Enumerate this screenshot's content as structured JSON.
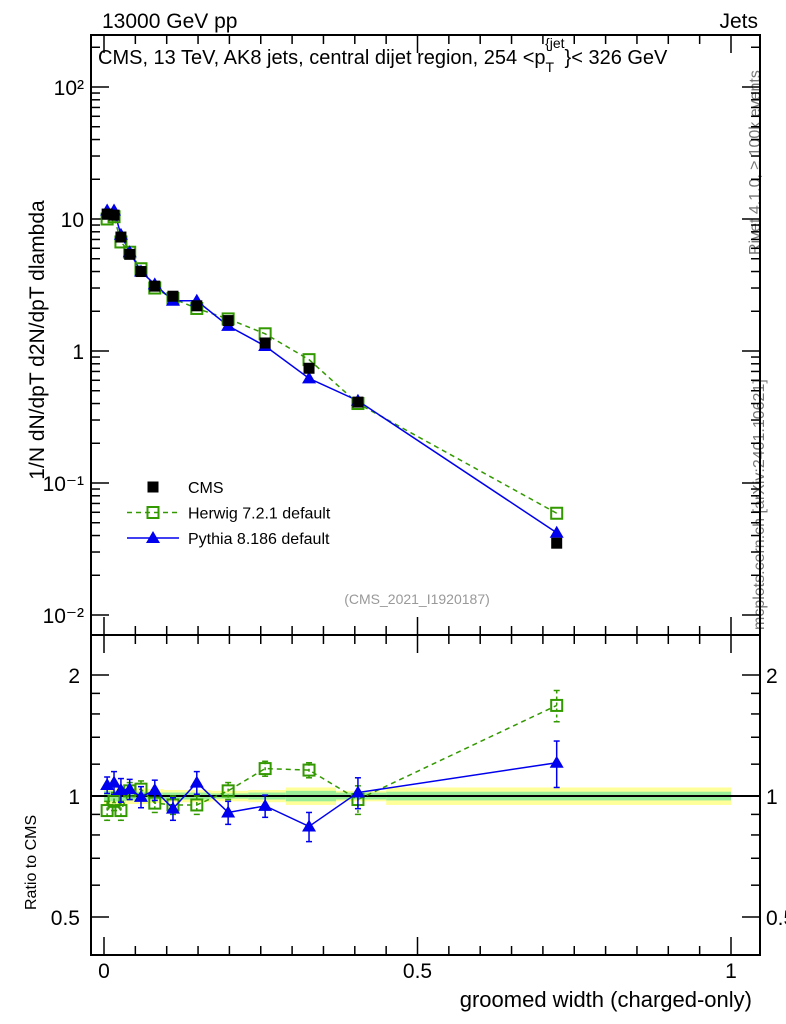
{
  "header": {
    "left": "13000 GeV pp",
    "right": "Jets"
  },
  "side": {
    "rivet": "Rivet 4.1.0, ≥ 100k events",
    "mcplots": "mcplots.cern.ch [arXiv:2401.10621]"
  },
  "chart_data": [
    {
      "type": "line",
      "title": "CMS, 13 TeV, AK8 jets, central dijet region, 254 <p_T^{jet}< 326 GeV",
      "title_main": "CMS, 13 TeV, AK8 jets, central dijet region, 254 <p",
      "title_sub": "T",
      "title_sup": "{jet",
      "title_end": "}< 326 GeV",
      "ylabel": "1/N dN/dpT d2N/dpT dlambda",
      "yscale": "log",
      "ylim": [
        0.008,
        250
      ],
      "xlim": [
        -0.02,
        1.05
      ],
      "ytick_labels": [
        "10⁻²",
        "10⁻¹",
        "1",
        "10",
        "10²"
      ],
      "ytick_values": [
        0.01,
        0.1,
        1,
        10,
        100
      ],
      "watermark": "(CMS_2021_I1920187)",
      "legend_position": "center-left",
      "x": [
        0.005,
        0.016,
        0.027,
        0.041,
        0.059,
        0.081,
        0.11,
        0.148,
        0.198,
        0.257,
        0.327,
        0.405,
        0.722
      ],
      "series": [
        {
          "name": "CMS",
          "color": "#000000",
          "marker": "square-filled",
          "values": [
            10.9,
            10.7,
            7.3,
            5.4,
            4.0,
            3.1,
            2.6,
            2.2,
            1.7,
            1.15,
            0.74,
            0.41,
            0.035
          ]
        },
        {
          "name": "Herwig 7.2.1 default",
          "color": "#339900",
          "marker": "square-open",
          "dashed": true,
          "values": [
            10.0,
            10.4,
            6.7,
            5.6,
            4.2,
            3.0,
            2.5,
            2.1,
            1.75,
            1.35,
            0.86,
            0.4,
            0.059
          ]
        },
        {
          "name": "Pythia 8.186 default",
          "color": "#0000ee",
          "marker": "triangle",
          "values": [
            11.6,
            11.6,
            7.6,
            5.6,
            4.0,
            3.2,
            2.4,
            2.4,
            1.55,
            1.09,
            0.62,
            0.42,
            0.042
          ]
        }
      ]
    },
    {
      "type": "line",
      "ylabel": "Ratio to CMS",
      "xlabel": "groomed width (charged-only)",
      "yscale": "log",
      "ylim": [
        0.4,
        2.3
      ],
      "ytick_labels": [
        "0.5",
        "1",
        "2"
      ],
      "ytick_values": [
        0.5,
        1,
        2
      ],
      "xtick_labels": [
        "0",
        "0.5",
        "1"
      ],
      "xtick_values": [
        0,
        0.5,
        1
      ],
      "bin_edges": [
        0,
        0.01,
        0.02,
        0.035,
        0.05,
        0.07,
        0.095,
        0.13,
        0.17,
        0.23,
        0.29,
        0.37,
        0.45,
        1.0
      ],
      "band_inner": [
        0.03,
        0.03,
        0.03,
        0.025,
        0.025,
        0.02,
        0.02,
        0.02,
        0.015,
        0.02,
        0.03,
        0.02,
        0.025
      ],
      "band_outer": [
        0.05,
        0.05,
        0.05,
        0.045,
        0.045,
        0.04,
        0.035,
        0.035,
        0.03,
        0.035,
        0.05,
        0.03,
        0.05
      ],
      "series": [
        {
          "name": "Herwig 7.2.1 default",
          "color": "#339900",
          "values": [
            0.92,
            0.97,
            0.92,
            1.03,
            1.04,
            0.96,
            0.95,
            0.95,
            1.03,
            1.17,
            1.16,
            0.98,
            1.68
          ],
          "errors": [
            0.05,
            0.05,
            0.05,
            0.05,
            0.05,
            0.05,
            0.05,
            0.05,
            0.05,
            0.05,
            0.05,
            0.08,
            0.15
          ]
        },
        {
          "name": "Pythia 8.186 default",
          "color": "#0000ee",
          "values": [
            1.065,
            1.08,
            1.035,
            1.04,
            0.995,
            1.035,
            0.93,
            1.08,
            0.91,
            0.945,
            0.84,
            1.02,
            1.21
          ],
          "errors": [
            0.05,
            0.07,
            0.07,
            0.06,
            0.06,
            0.06,
            0.06,
            0.07,
            0.06,
            0.06,
            0.07,
            0.09,
            0.16
          ]
        }
      ]
    }
  ]
}
